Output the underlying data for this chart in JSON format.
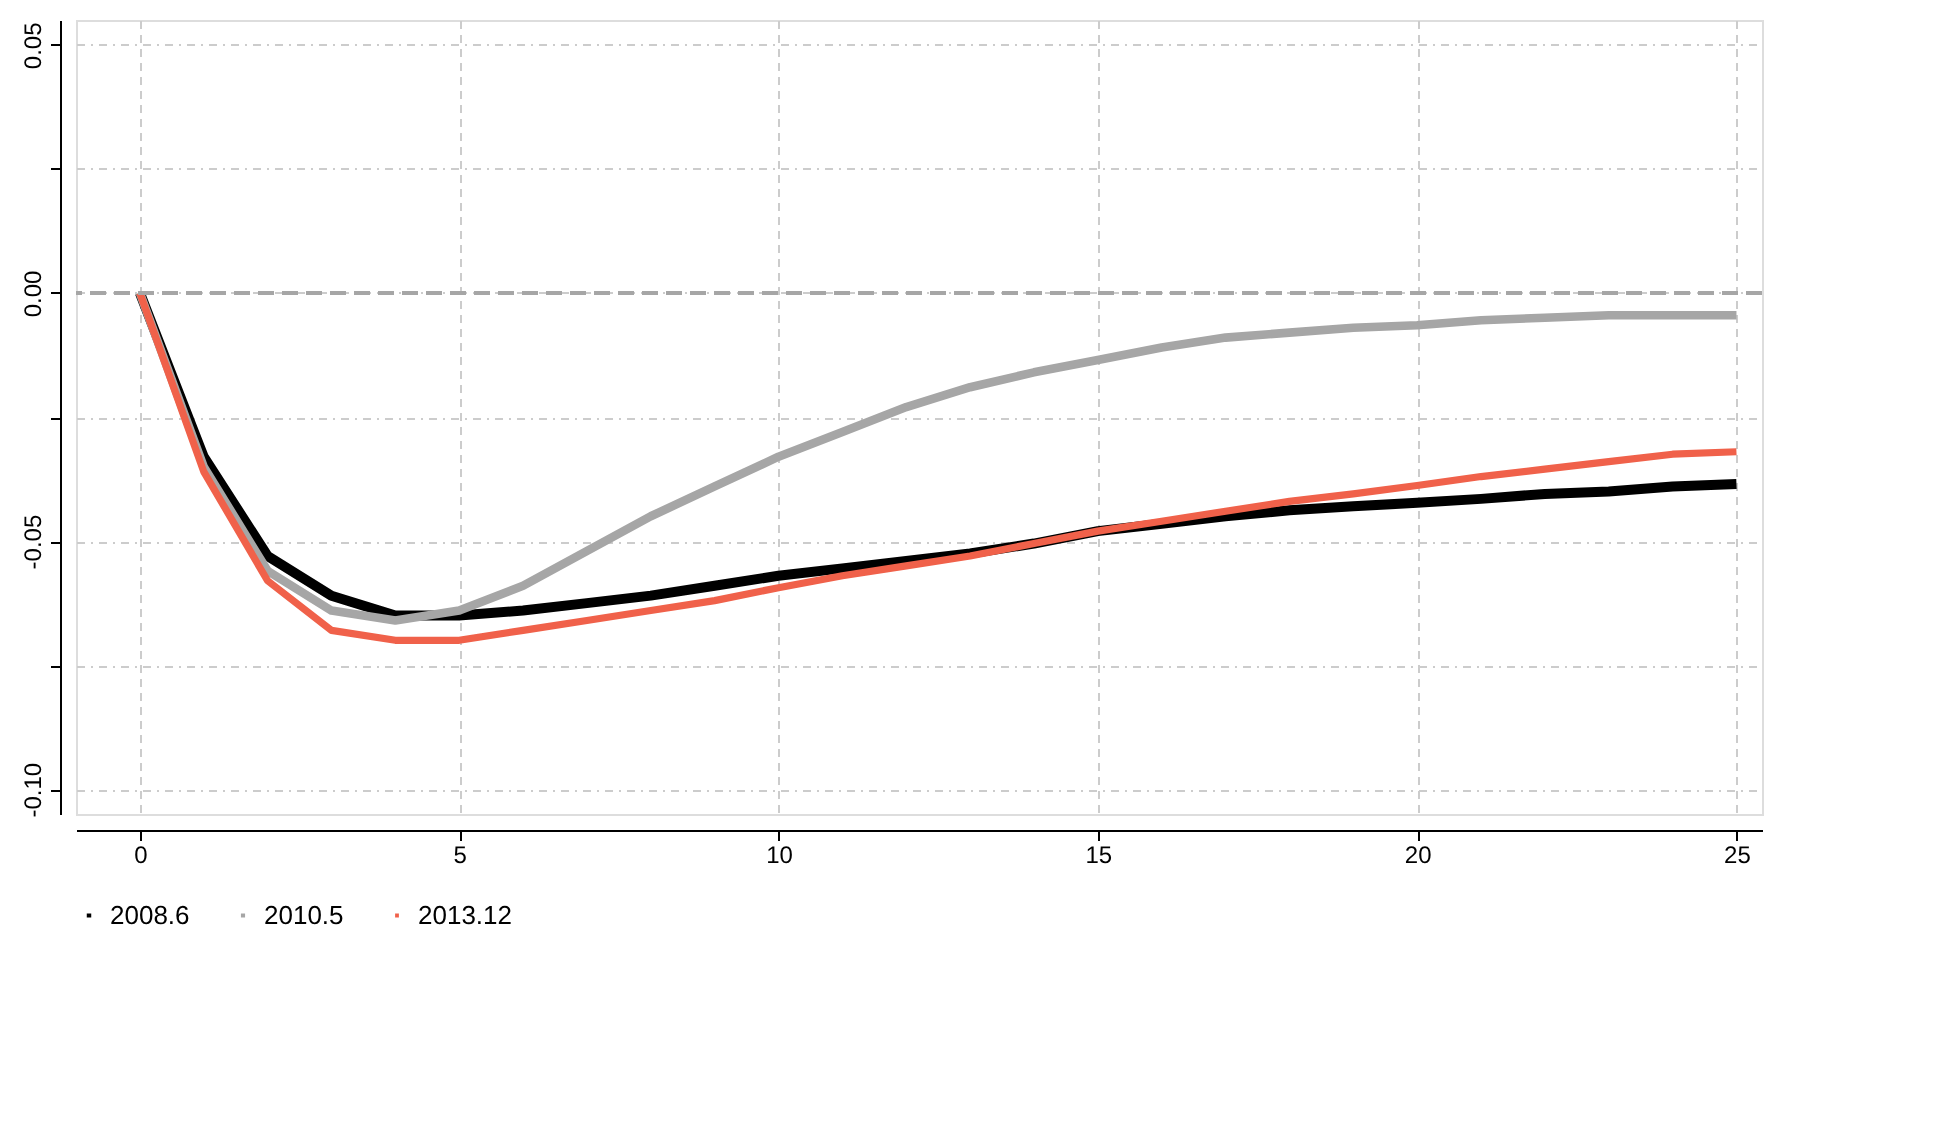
{
  "chart_data": {
    "type": "line",
    "x": [
      0,
      1,
      2,
      3,
      4,
      5,
      6,
      7,
      8,
      9,
      10,
      11,
      12,
      13,
      14,
      15,
      16,
      17,
      18,
      19,
      20,
      21,
      22,
      23,
      24,
      25
    ],
    "series": [
      {
        "name": "2008.6",
        "color": "#000000",
        "values": [
          0,
          -0.033,
          -0.053,
          -0.061,
          -0.065,
          -0.065,
          -0.064,
          -0.0625,
          -0.061,
          -0.059,
          -0.057,
          -0.0555,
          -0.054,
          -0.0525,
          -0.0505,
          -0.048,
          -0.0465,
          -0.045,
          -0.0438,
          -0.043,
          -0.0423,
          -0.0415,
          -0.0405,
          -0.04,
          -0.039,
          -0.0385
        ]
      },
      {
        "name": "2010.5",
        "color": "#a6a6a6",
        "values": [
          0,
          -0.035,
          -0.056,
          -0.064,
          -0.066,
          -0.064,
          -0.059,
          -0.052,
          -0.045,
          -0.039,
          -0.033,
          -0.028,
          -0.023,
          -0.019,
          -0.016,
          -0.0135,
          -0.011,
          -0.009,
          -0.008,
          -0.007,
          -0.0065,
          -0.0055,
          -0.005,
          -0.0045,
          -0.0045,
          -0.0045
        ]
      },
      {
        "name": "2013.12",
        "color": "#f0614a",
        "values": [
          0,
          -0.036,
          -0.058,
          -0.068,
          -0.07,
          -0.07,
          -0.068,
          -0.066,
          -0.064,
          -0.062,
          -0.0594,
          -0.057,
          -0.055,
          -0.053,
          -0.0505,
          -0.048,
          -0.046,
          -0.044,
          -0.042,
          -0.0405,
          -0.0388,
          -0.037,
          -0.0355,
          -0.034,
          -0.0325,
          -0.032
        ]
      }
    ],
    "xlim": [
      -1,
      25.4
    ],
    "xticks": [
      0,
      5,
      10,
      15,
      20,
      25
    ],
    "ylim": [
      -0.105,
      0.055
    ],
    "yticks": [
      {
        "value": -0.1,
        "label": "-0.10"
      },
      {
        "value": -0.075,
        "label": null
      },
      {
        "value": -0.05,
        "label": "-0.05"
      },
      {
        "value": -0.025,
        "label": null
      },
      {
        "value": 0,
        "label": "0.00"
      },
      {
        "value": 0.025,
        "label": null
      },
      {
        "value": 0.05,
        "label": "0.05"
      }
    ],
    "ref_lines": [
      {
        "axis": "y",
        "value": 0,
        "color": "#a6a6a6",
        "line_style": "dashed"
      }
    ],
    "grid": true,
    "legend": "bottom",
    "line_style": "solid",
    "marker": "none"
  }
}
